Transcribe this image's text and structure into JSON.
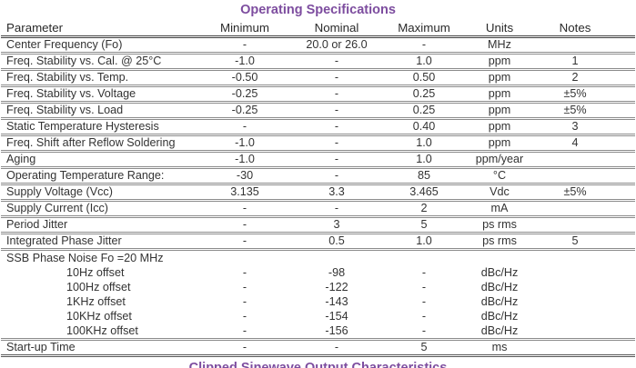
{
  "page_title": "Operating Specifications",
  "accent_color": "#7d4d9f",
  "table": {
    "columns": [
      "Parameter",
      "Minimum",
      "Nominal",
      "Maximum",
      "Units",
      "Notes"
    ],
    "rows": [
      {
        "type": "normal",
        "parameter": "Center Frequency (Fo)",
        "minimum": "-",
        "nominal": "20.0 or 26.0",
        "maximum": "-",
        "units": "MHz",
        "notes": ""
      },
      {
        "type": "normal",
        "parameter": "Freq. Stability vs. Cal. @ 25°C",
        "minimum": "-1.0",
        "nominal": "-",
        "maximum": "1.0",
        "units": "ppm",
        "notes": "1"
      },
      {
        "type": "normal",
        "parameter": "Freq. Stability vs. Temp.",
        "minimum": "-0.50",
        "nominal": "-",
        "maximum": "0.50",
        "units": "ppm",
        "notes": "2"
      },
      {
        "type": "normal",
        "parameter": "Freq. Stability vs. Voltage",
        "minimum": "-0.25",
        "nominal": "-",
        "maximum": "0.25",
        "units": "ppm",
        "notes": "±5%"
      },
      {
        "type": "normal",
        "parameter": "Freq. Stability vs. Load",
        "minimum": "-0.25",
        "nominal": "-",
        "maximum": "0.25",
        "units": "ppm",
        "notes": "±5%"
      },
      {
        "type": "normal",
        "parameter": "Static Temperature Hysteresis",
        "minimum": "-",
        "nominal": "-",
        "maximum": "0.40",
        "units": "ppm",
        "notes": "3"
      },
      {
        "type": "normal",
        "parameter": "Freq. Shift after Reflow Soldering",
        "minimum": "-1.0",
        "nominal": "-",
        "maximum": "1.0",
        "units": "ppm",
        "notes": "4"
      },
      {
        "type": "normal",
        "parameter": "Aging",
        "minimum": "-1.0",
        "nominal": "-",
        "maximum": "1.0",
        "units": "ppm/year",
        "notes": ""
      },
      {
        "type": "normal",
        "parameter": "Operating Temperature Range:",
        "minimum": "-30",
        "nominal": "-",
        "maximum": "85",
        "units": "°C",
        "notes": ""
      },
      {
        "type": "normal",
        "parameter": "Supply Voltage (Vcc)",
        "minimum": "3.135",
        "nominal": "3.3",
        "maximum": "3.465",
        "units": "Vdc",
        "notes": "±5%"
      },
      {
        "type": "normal",
        "parameter": "Supply Current (Icc)",
        "minimum": "-",
        "nominal": "-",
        "maximum": "2",
        "units": "mA",
        "notes": ""
      },
      {
        "type": "normal",
        "parameter": "Period Jitter",
        "minimum": "-",
        "nominal": "3",
        "maximum": "5",
        "units": "ps rms",
        "notes": ""
      },
      {
        "type": "normal",
        "parameter": "Integrated Phase Jitter",
        "minimum": "-",
        "nominal": "0.5",
        "maximum": "1.0",
        "units": "ps rms",
        "notes": "5"
      },
      {
        "type": "section",
        "parameter": "SSB Phase Noise Fo =20 MHz",
        "minimum": "",
        "nominal": "",
        "maximum": "",
        "units": "",
        "notes": ""
      },
      {
        "type": "sub",
        "parameter": "10Hz offset",
        "minimum": "-",
        "nominal": "-98",
        "maximum": "-",
        "units": "dBc/Hz",
        "notes": ""
      },
      {
        "type": "sub",
        "parameter": "100Hz offset",
        "minimum": "-",
        "nominal": "-122",
        "maximum": "-",
        "units": "dBc/Hz",
        "notes": ""
      },
      {
        "type": "sub",
        "parameter": "1KHz offset",
        "minimum": "-",
        "nominal": "-143",
        "maximum": "-",
        "units": "dBc/Hz",
        "notes": ""
      },
      {
        "type": "sub",
        "parameter": "10KHz offset",
        "minimum": "-",
        "nominal": "-154",
        "maximum": "-",
        "units": "dBc/Hz",
        "notes": ""
      },
      {
        "type": "sub",
        "parameter": "100KHz offset",
        "minimum": "-",
        "nominal": "-156",
        "maximum": "-",
        "units": "dBc/Hz",
        "notes": ""
      },
      {
        "type": "normal",
        "parameter": "Start-up Time",
        "minimum": "-",
        "nominal": "-",
        "maximum": "5",
        "units": "ms",
        "notes": ""
      }
    ]
  },
  "bottom_heading": "Clipped Sinewave Output Characteristics"
}
